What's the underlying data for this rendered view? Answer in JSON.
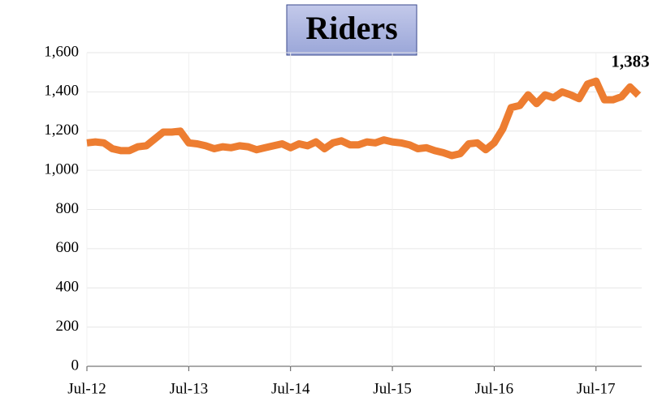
{
  "chart_data": {
    "type": "line",
    "title": "Riders",
    "categories": [
      "Jul-12",
      null,
      null,
      null,
      null,
      null,
      null,
      null,
      null,
      null,
      null,
      null,
      "Jul-13",
      null,
      null,
      null,
      null,
      null,
      null,
      null,
      null,
      null,
      null,
      null,
      "Jul-14",
      null,
      null,
      null,
      null,
      null,
      null,
      null,
      null,
      null,
      null,
      null,
      "Jul-15",
      null,
      null,
      null,
      null,
      null,
      null,
      null,
      null,
      null,
      null,
      null,
      "Jul-16",
      null,
      null,
      null,
      null,
      null,
      null,
      null,
      null,
      null,
      null,
      null,
      "Jul-17",
      null,
      null,
      null,
      null,
      null
    ],
    "series": [
      {
        "name": "Riders",
        "color": "#ed7d31",
        "values": [
          1140,
          1145,
          1140,
          1110,
          1100,
          1100,
          1120,
          1125,
          1160,
          1195,
          1195,
          1200,
          1140,
          1135,
          1125,
          1110,
          1120,
          1115,
          1125,
          1120,
          1105,
          1115,
          1125,
          1135,
          1115,
          1135,
          1125,
          1145,
          1110,
          1140,
          1150,
          1130,
          1130,
          1145,
          1140,
          1155,
          1145,
          1140,
          1130,
          1110,
          1115,
          1100,
          1090,
          1075,
          1085,
          1135,
          1140,
          1105,
          1140,
          1210,
          1320,
          1330,
          1385,
          1340,
          1385,
          1370,
          1400,
          1385,
          1365,
          1440,
          1455,
          1360,
          1360,
          1375,
          1425,
          1383
        ],
        "value_labels": [
          null,
          null,
          null,
          null,
          null,
          null,
          null,
          null,
          null,
          null,
          null,
          null,
          null,
          null,
          null,
          null,
          null,
          null,
          null,
          null,
          null,
          null,
          null,
          null,
          null,
          null,
          null,
          null,
          null,
          null,
          null,
          null,
          null,
          null,
          null,
          null,
          null,
          null,
          null,
          null,
          null,
          null,
          null,
          null,
          null,
          null,
          null,
          null,
          null,
          null,
          null,
          null,
          null,
          null,
          null,
          null,
          null,
          null,
          null,
          null,
          null,
          null,
          null,
          null,
          null,
          "1,383"
        ]
      }
    ],
    "ylim": [
      0,
      1600
    ],
    "yticks": [
      0,
      200,
      400,
      600,
      800,
      {
        "value": 1000,
        "label": "1,000"
      },
      {
        "value": 1200,
        "label": "1,200"
      },
      {
        "value": 1400,
        "label": "1,400"
      },
      {
        "value": 1600,
        "label": "1,600"
      }
    ],
    "grid": true
  }
}
